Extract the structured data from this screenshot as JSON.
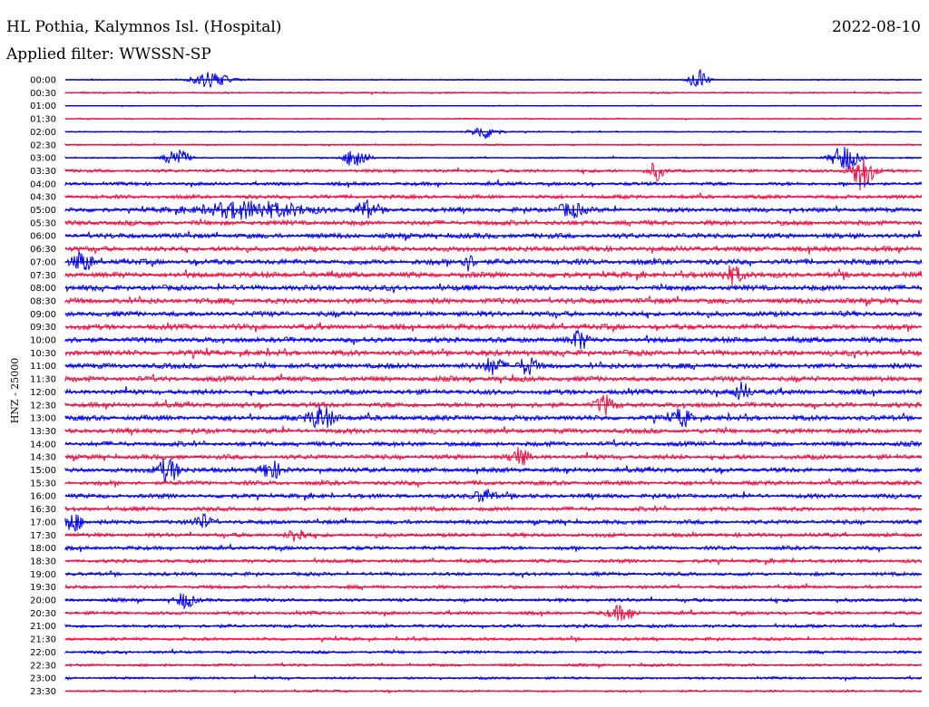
{
  "header": {
    "station": "HL Pothia, Kalymnos Isl. (Hospital)",
    "date": "2022-08-10",
    "filter": "Applied filter: WWSSN-SP"
  },
  "chart_data": {
    "type": "line",
    "title": "HL Pothia, Kalymnos Isl. (Hospital)",
    "ylabel": "HNZ - 25000",
    "trace_colors": [
      "#0000ee",
      "#ee1144"
    ],
    "row_labels": [
      "00:00",
      "00:30",
      "01:00",
      "01:30",
      "02:00",
      "02:30",
      "03:00",
      "03:30",
      "04:00",
      "04:30",
      "05:00",
      "05:30",
      "06:00",
      "06:30",
      "07:00",
      "07:30",
      "08:00",
      "08:30",
      "09:00",
      "09:30",
      "10:00",
      "10:30",
      "11:00",
      "11:30",
      "12:00",
      "12:30",
      "13:00",
      "13:30",
      "14:00",
      "14:30",
      "15:00",
      "15:30",
      "16:00",
      "16:30",
      "17:00",
      "17:30",
      "18:00",
      "18:30",
      "19:00",
      "19:30",
      "20:00",
      "20:30",
      "21:00",
      "21:30",
      "22:00",
      "22:30",
      "23:00",
      "23:30"
    ],
    "noise_level": [
      0.6,
      0.9,
      0.5,
      0.7,
      0.7,
      0.9,
      0.9,
      1.8,
      2.0,
      2.2,
      2.6,
      2.8,
      2.9,
      3.0,
      3.1,
      3.2,
      3.1,
      3.2,
      3.0,
      3.1,
      3.0,
      3.2,
      3.0,
      3.0,
      2.9,
      2.9,
      3.0,
      2.8,
      2.7,
      2.7,
      2.7,
      2.5,
      2.5,
      2.4,
      2.4,
      2.3,
      2.2,
      2.1,
      2.0,
      2.0,
      2.0,
      1.9,
      1.9,
      1.7,
      1.6,
      1.5,
      1.4,
      1.2
    ],
    "events": [
      {
        "row": 0,
        "x": 0.17,
        "amp": 9,
        "width": 0.02
      },
      {
        "row": 0,
        "x": 0.74,
        "amp": 12,
        "width": 0.01
      },
      {
        "row": 4,
        "x": 0.49,
        "amp": 8,
        "width": 0.015
      },
      {
        "row": 6,
        "x": 0.13,
        "amp": 12,
        "width": 0.012
      },
      {
        "row": 6,
        "x": 0.34,
        "amp": 14,
        "width": 0.012
      },
      {
        "row": 6,
        "x": 0.91,
        "amp": 14,
        "width": 0.015
      },
      {
        "row": 7,
        "x": 0.69,
        "amp": 10,
        "width": 0.008
      },
      {
        "row": 7,
        "x": 0.93,
        "amp": 22,
        "width": 0.012
      },
      {
        "row": 10,
        "x": 0.22,
        "amp": 9,
        "width": 0.06
      },
      {
        "row": 10,
        "x": 0.35,
        "amp": 10,
        "width": 0.01
      },
      {
        "row": 10,
        "x": 0.59,
        "amp": 8,
        "width": 0.015
      },
      {
        "row": 14,
        "x": 0.02,
        "amp": 12,
        "width": 0.01
      },
      {
        "row": 14,
        "x": 0.47,
        "amp": 9,
        "width": 0.008
      },
      {
        "row": 15,
        "x": 0.78,
        "amp": 10,
        "width": 0.012
      },
      {
        "row": 20,
        "x": 0.6,
        "amp": 10,
        "width": 0.01
      },
      {
        "row": 22,
        "x": 0.5,
        "amp": 9,
        "width": 0.012
      },
      {
        "row": 22,
        "x": 0.54,
        "amp": 9,
        "width": 0.01
      },
      {
        "row": 24,
        "x": 0.79,
        "amp": 10,
        "width": 0.01
      },
      {
        "row": 25,
        "x": 0.63,
        "amp": 10,
        "width": 0.01
      },
      {
        "row": 26,
        "x": 0.3,
        "amp": 12,
        "width": 0.015
      },
      {
        "row": 26,
        "x": 0.72,
        "amp": 10,
        "width": 0.01
      },
      {
        "row": 29,
        "x": 0.53,
        "amp": 10,
        "width": 0.01
      },
      {
        "row": 30,
        "x": 0.12,
        "amp": 14,
        "width": 0.012
      },
      {
        "row": 30,
        "x": 0.24,
        "amp": 9,
        "width": 0.012
      },
      {
        "row": 32,
        "x": 0.49,
        "amp": 8,
        "width": 0.012
      },
      {
        "row": 34,
        "x": 0.01,
        "amp": 11,
        "width": 0.01
      },
      {
        "row": 34,
        "x": 0.16,
        "amp": 8,
        "width": 0.01
      },
      {
        "row": 35,
        "x": 0.27,
        "amp": 8,
        "width": 0.01
      },
      {
        "row": 40,
        "x": 0.14,
        "amp": 8,
        "width": 0.01
      },
      {
        "row": 41,
        "x": 0.65,
        "amp": 8,
        "width": 0.015
      }
    ]
  }
}
